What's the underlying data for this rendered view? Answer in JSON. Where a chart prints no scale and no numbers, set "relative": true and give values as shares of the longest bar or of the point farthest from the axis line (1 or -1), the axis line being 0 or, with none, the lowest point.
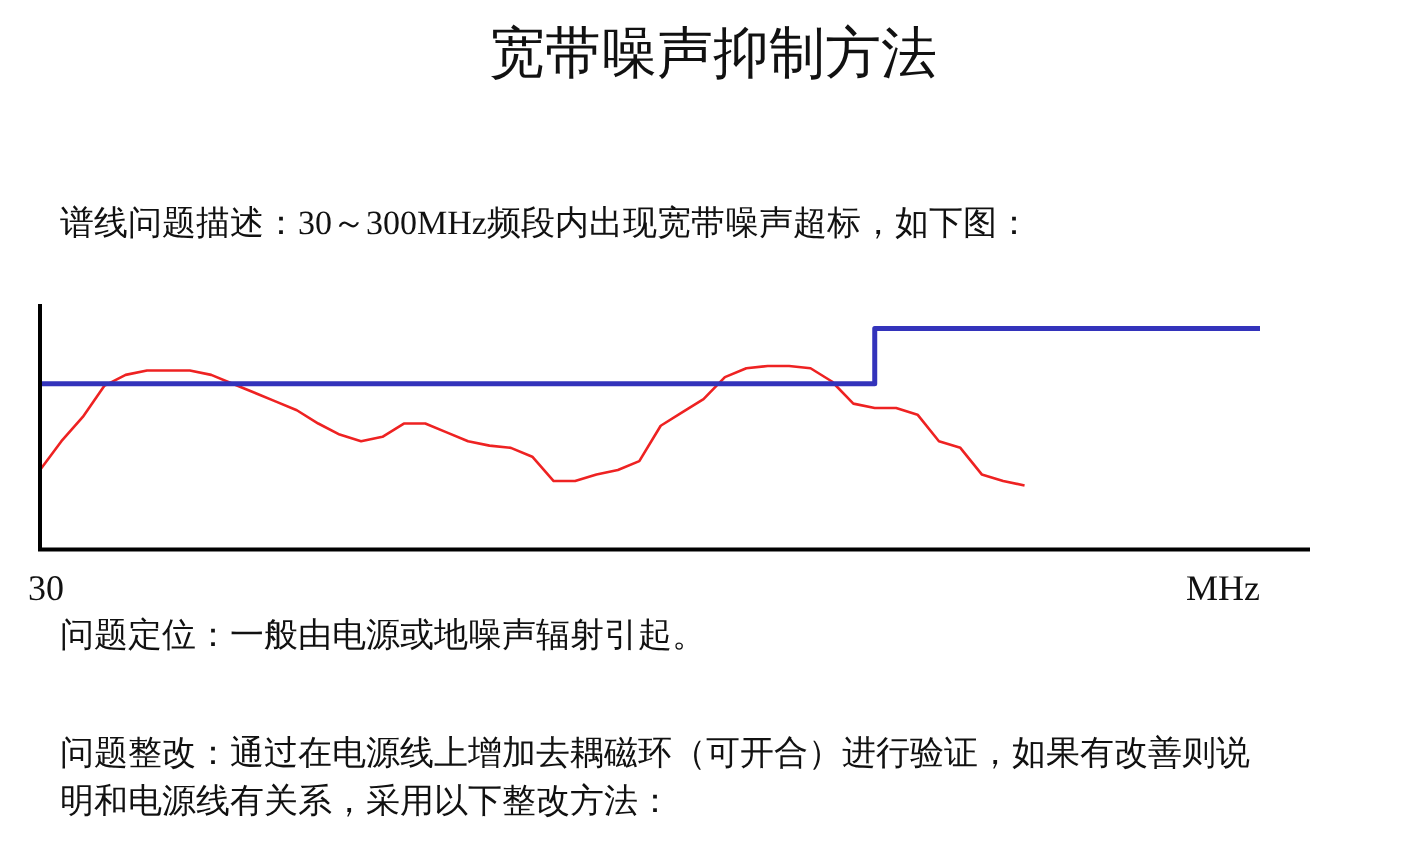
{
  "chart_data": {
    "type": "line",
    "title": "宽带噪声抑制方法",
    "xlabel": "MHz",
    "relative": true,
    "categories": [
      null,
      null,
      null,
      null,
      null,
      null,
      null,
      null,
      null,
      null,
      null,
      null,
      null,
      null,
      null,
      null,
      null,
      null,
      null,
      null,
      null,
      null,
      null,
      null,
      null,
      null,
      null,
      null,
      null,
      null,
      null,
      null,
      null,
      null,
      null,
      null,
      null,
      null,
      null,
      null,
      null,
      null,
      null,
      null,
      null,
      null,
      null,
      null,
      null,
      null,
      null,
      null,
      null,
      null,
      null,
      null,
      null,
      null
    ],
    "series": [
      {
        "type": "step",
        "color": "#3333bb",
        "values": [
          0.75,
          0.75,
          0.75,
          0.75,
          0.75,
          0.75,
          0.75,
          0.75,
          0.75,
          0.75,
          0.75,
          0.75,
          0.75,
          0.75,
          0.75,
          0.75,
          0.75,
          0.75,
          0.75,
          0.75,
          0.75,
          0.75,
          0.75,
          0.75,
          0.75,
          0.75,
          0.75,
          0.75,
          0.75,
          0.75,
          0.75,
          0.75,
          0.75,
          0.75,
          0.75,
          0.75,
          0.75,
          0.75,
          0.75,
          1,
          1,
          1,
          1,
          1,
          1,
          1,
          1,
          1,
          1,
          1,
          1,
          1,
          1,
          1,
          1,
          1,
          1,
          1
        ]
      },
      {
        "type": "line",
        "color": "#ee2222",
        "values": [
          0.36,
          0.49,
          0.6,
          0.74,
          0.79,
          0.81,
          0.81,
          0.81,
          0.79,
          0.75,
          0.71,
          0.67,
          0.63,
          0.57,
          0.52,
          0.49,
          0.51,
          0.57,
          0.57,
          0.53,
          0.49,
          0.47,
          0.46,
          0.42,
          0.31,
          0.31,
          0.34,
          0.36,
          0.4,
          0.56,
          0.62,
          0.68,
          0.78,
          0.82,
          0.83,
          0.83,
          0.82,
          0.76,
          0.66,
          0.64,
          0.64,
          0.61,
          0.49,
          0.46,
          0.34,
          0.31,
          0.29,
          null,
          null,
          null,
          null,
          null,
          null,
          null,
          null,
          null,
          null,
          null
        ]
      }
    ],
    "annotations": [
      "30",
      "谱线问题描述：30～300MHz频段内出现宽带噪声超标，如下图：",
      "问题定位：一般由电源或地噪声辐射引起。",
      "问题整改：通过在电源线上增加去耦磁环（可开合）进行验证，如果有改善则说明和电源线有关系，采用以下整改方法："
    ]
  }
}
